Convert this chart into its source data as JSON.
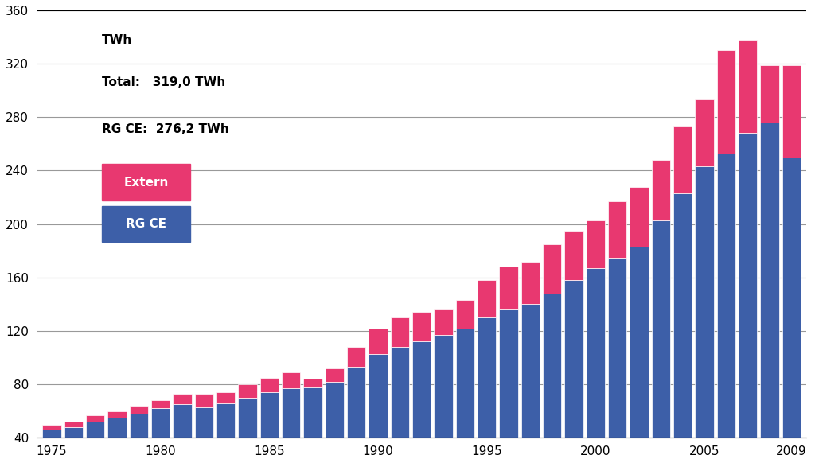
{
  "years": [
    1975,
    1976,
    1977,
    1978,
    1979,
    1980,
    1981,
    1982,
    1983,
    1984,
    1985,
    1986,
    1987,
    1988,
    1989,
    1990,
    1991,
    1992,
    1993,
    1994,
    1995,
    1996,
    1997,
    1998,
    1999,
    2000,
    2001,
    2002,
    2003,
    2004,
    2005,
    2006,
    2007,
    2008,
    2009
  ],
  "rg_ce_total": [
    46,
    48,
    52,
    55,
    58,
    62,
    65,
    63,
    66,
    70,
    74,
    77,
    78,
    82,
    93,
    103,
    108,
    112,
    117,
    122,
    130,
    136,
    140,
    148,
    158,
    167,
    175,
    183,
    203,
    223,
    243,
    253,
    268,
    276,
    250
  ],
  "total": [
    50,
    52,
    57,
    60,
    64,
    68,
    73,
    73,
    74,
    80,
    85,
    89,
    84,
    92,
    108,
    122,
    130,
    134,
    136,
    143,
    158,
    168,
    172,
    185,
    195,
    203,
    217,
    228,
    248,
    273,
    293,
    330,
    338,
    319,
    319
  ],
  "color_rg_ce": "#3d5fa8",
  "color_extern": "#e83870",
  "bar_edge_color": "#ffffff",
  "background_color": "#ffffff",
  "ylabel": "TWh",
  "ylim_min": 40,
  "ylim_max": 360,
  "yticks": [
    40,
    80,
    120,
    160,
    200,
    240,
    280,
    320,
    360
  ],
  "xticks": [
    1975,
    1980,
    1985,
    1990,
    1995,
    2000,
    2005,
    2009
  ],
  "annotation_total": "Total:   319,0 TWh",
  "annotation_rgce": "RG CE:  276,2 TWh",
  "legend_extern": "Extern",
  "legend_rgce": "RG CE",
  "font_size_annotations": 11,
  "font_size_legend": 11,
  "font_size_ticks": 11,
  "font_size_ylabel": 11,
  "grid_color": "#000000",
  "grid_alpha": 0.4,
  "grid_linewidth": 0.8,
  "bar_base": 40
}
